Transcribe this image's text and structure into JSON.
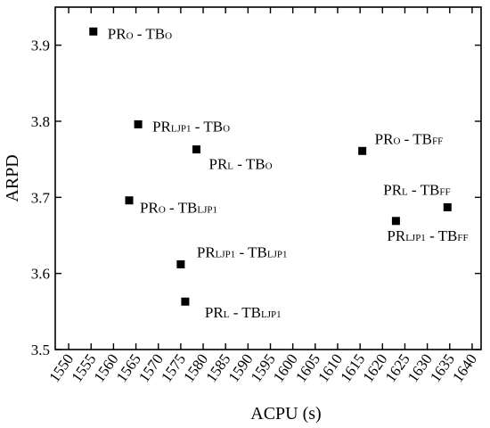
{
  "chart_data": {
    "type": "scatter",
    "xlabel": "ACPU (s)",
    "ylabel": "ARPD",
    "xlim": [
      1547,
      1642
    ],
    "ylim": [
      3.5,
      3.95
    ],
    "x_ticks": [
      1550,
      1555,
      1560,
      1565,
      1570,
      1575,
      1580,
      1585,
      1590,
      1595,
      1600,
      1605,
      1610,
      1615,
      1620,
      1625,
      1630,
      1635,
      1640
    ],
    "y_ticks": [
      3.5,
      3.6,
      3.7,
      3.8,
      3.9
    ],
    "y_tick_labels": [
      "3.5",
      "3.6",
      "3.7",
      "3.8",
      "3.9"
    ],
    "marker": "square",
    "marker_color": "#000000",
    "grid": false,
    "points": [
      {
        "x": 1555.5,
        "y": 3.918,
        "label_main": "PR",
        "label_sub1": "O",
        "label_mid": " - TB",
        "label_sub2": "O"
      },
      {
        "x": 1565.5,
        "y": 3.796,
        "label_main": "PR",
        "label_sub1": "LJP1",
        "label_mid": " - TB",
        "label_sub2": "O"
      },
      {
        "x": 1578.5,
        "y": 3.763,
        "label_main": "PR",
        "label_sub1": "L",
        "label_mid": " - TB",
        "label_sub2": "O"
      },
      {
        "x": 1563.5,
        "y": 3.696,
        "label_main": "PR",
        "label_sub1": "O",
        "label_mid": " - TB",
        "label_sub2": "LJP1"
      },
      {
        "x": 1575.0,
        "y": 3.612,
        "label_main": "PR",
        "label_sub1": "LJP1",
        "label_mid": " - TB",
        "label_sub2": "LJP1"
      },
      {
        "x": 1576.0,
        "y": 3.563,
        "label_main": "PR",
        "label_sub1": "L",
        "label_mid": " - TB",
        "label_sub2": "LJP1"
      },
      {
        "x": 1615.5,
        "y": 3.761,
        "label_main": "PR",
        "label_sub1": "O",
        "label_mid": " - TB",
        "label_sub2": "FF"
      },
      {
        "x": 1623.0,
        "y": 3.669,
        "label_main": "PR",
        "label_sub1": "LJP1",
        "label_mid": " - TB",
        "label_sub2": "FF"
      },
      {
        "x": 1634.5,
        "y": 3.687,
        "label_main": "PR",
        "label_sub1": "L",
        "label_mid": " - TB",
        "label_sub2": "FF"
      }
    ]
  }
}
